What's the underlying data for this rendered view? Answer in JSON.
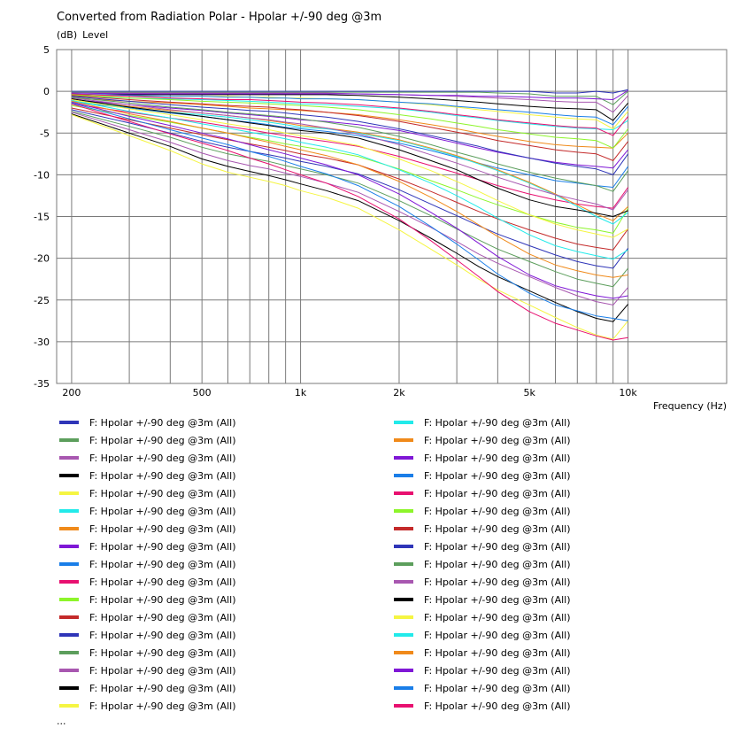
{
  "title": "Converted from Radiation Polar - Hpolar +/-90 deg @3m",
  "ylabel_unit": "(dB)",
  "ylabel_name": "Level",
  "xlabel": "Frequency  (Hz)",
  "legend_more": "...",
  "chart_data": {
    "type": "line",
    "title": "Converted from Radiation Polar - Hpolar +/-90 deg @3m",
    "xlabel": "Frequency (Hz)",
    "ylabel": "Level (dB)",
    "x_scale": "log",
    "xlim": [
      180,
      20000
    ],
    "ylim": [
      -35,
      5
    ],
    "x_ticks": [
      200,
      500,
      1000,
      2000,
      5000,
      10000
    ],
    "x_tick_labels": [
      "200",
      "500",
      "1k",
      "2k",
      "5k",
      "10k"
    ],
    "y_ticks": [
      5,
      0,
      -5,
      -10,
      -15,
      -20,
      -25,
      -30,
      -35
    ],
    "y_tick_labels": [
      "5",
      "0",
      "-5",
      "-10",
      "-15",
      "-20",
      "-25",
      "-30",
      "-35"
    ],
    "grid": true,
    "x": [
      200,
      300,
      400,
      500,
      600,
      700,
      800,
      900,
      1000,
      1200,
      1500,
      2000,
      2500,
      3000,
      3500,
      4000,
      5000,
      6000,
      7000,
      8000,
      9000,
      10000
    ],
    "series": [
      {
        "name": "F: Hpolar +/-90 deg @3m  (All)",
        "color": "#2f35b8",
        "values": [
          0,
          0,
          0,
          0,
          0,
          0,
          0,
          0,
          0,
          0,
          0,
          0,
          0,
          0,
          0,
          0,
          0,
          -0.2,
          -0.2,
          0,
          -0.2,
          0.2
        ]
      },
      {
        "name": "F: Hpolar +/-90 deg @3m  (All)",
        "color": "#5c9e5c",
        "values": [
          -0.1,
          -0.1,
          -0.1,
          -0.1,
          -0.1,
          -0.1,
          -0.1,
          -0.1,
          -0.1,
          -0.1,
          -0.1,
          -0.1,
          -0.1,
          -0.1,
          -0.1,
          -0.2,
          -0.3,
          -0.6,
          -0.6,
          -0.6,
          -1.6,
          0
        ]
      },
      {
        "name": "F: Hpolar +/-90 deg @3m  (All)",
        "color": "#a857b0",
        "values": [
          -0.2,
          -0.2,
          -0.2,
          -0.2,
          -0.2,
          -0.2,
          -0.2,
          -0.2,
          -0.2,
          -0.2,
          -0.3,
          -0.4,
          -0.5,
          -0.6,
          -0.7,
          -0.8,
          -1.0,
          -1.2,
          -1.3,
          -1.3,
          -2.5,
          -0.5
        ]
      },
      {
        "name": "F: Hpolar +/-90 deg @3m  (All)",
        "color": "#000000",
        "values": [
          -0.4,
          -0.4,
          -0.4,
          -0.4,
          -0.4,
          -0.4,
          -0.4,
          -0.4,
          -0.4,
          -0.4,
          -0.5,
          -0.7,
          -0.9,
          -1.1,
          -1.3,
          -1.5,
          -1.8,
          -2.0,
          -2.1,
          -2.2,
          -3.5,
          -1.4
        ]
      },
      {
        "name": "F: Hpolar +/-90 deg @3m  (All)",
        "color": "#f5f542",
        "values": [
          -0.5,
          -0.6,
          -0.6,
          -0.6,
          -0.6,
          -0.7,
          -0.7,
          -0.8,
          -0.8,
          -0.9,
          -1.0,
          -1.3,
          -1.6,
          -1.9,
          -2.2,
          -2.4,
          -2.8,
          -3.1,
          -3.3,
          -3.4,
          -4.5,
          -2.4
        ]
      },
      {
        "name": "F: Hpolar +/-90 deg @3m  (All)",
        "color": "#22eaea",
        "values": [
          -0.6,
          -0.8,
          -0.9,
          -1.0,
          -1.1,
          -1.2,
          -1.3,
          -1.4,
          -1.5,
          -1.6,
          -1.8,
          -2.1,
          -2.5,
          -2.9,
          -3.2,
          -3.5,
          -3.9,
          -4.2,
          -4.4,
          -4.5,
          -4.6,
          -3.5
        ]
      },
      {
        "name": "F: Hpolar +/-90 deg @3m  (All)",
        "color": "#f08a1a",
        "values": [
          -0.8,
          -1.2,
          -1.4,
          -1.6,
          -1.8,
          -2.0,
          -2.1,
          -2.2,
          -2.3,
          -2.5,
          -2.8,
          -3.4,
          -4.0,
          -4.5,
          -5.0,
          -5.4,
          -6.0,
          -6.4,
          -6.6,
          -6.7,
          -6.8,
          -5.0
        ]
      },
      {
        "name": "F: Hpolar +/-90 deg @3m  (All)",
        "color": "#7f17d6",
        "values": [
          -1.0,
          -1.6,
          -2.0,
          -2.3,
          -2.6,
          -2.8,
          -3.0,
          -3.2,
          -3.4,
          -3.6,
          -4.0,
          -4.7,
          -5.5,
          -6.2,
          -6.8,
          -7.3,
          -8.0,
          -8.5,
          -8.8,
          -9.0,
          -9.2,
          -7.0
        ]
      },
      {
        "name": "F: Hpolar +/-90 deg @3m  (All)",
        "color": "#1a7ee8",
        "values": [
          -1.3,
          -2.0,
          -2.6,
          -3.0,
          -3.4,
          -3.7,
          -4.0,
          -4.3,
          -4.5,
          -4.8,
          -5.3,
          -6.2,
          -7.1,
          -7.9,
          -8.6,
          -9.2,
          -10.0,
          -10.7,
          -11.0,
          -11.3,
          -11.5,
          -9.0
        ]
      },
      {
        "name": "F: Hpolar +/-90 deg @3m  (All)",
        "color": "#e81070",
        "values": [
          -1.5,
          -2.5,
          -3.2,
          -3.7,
          -4.2,
          -4.6,
          -5.0,
          -5.3,
          -5.6,
          -6.0,
          -6.6,
          -7.8,
          -8.9,
          -9.8,
          -10.6,
          -11.3,
          -12.3,
          -13.0,
          -13.5,
          -13.8,
          -14.0,
          -11.5
        ]
      },
      {
        "name": "F: Hpolar +/-90 deg @3m  (All)",
        "color": "#8df52a",
        "values": [
          -1.7,
          -2.9,
          -3.7,
          -4.4,
          -5.0,
          -5.5,
          -5.9,
          -6.3,
          -6.6,
          -7.1,
          -7.8,
          -9.3,
          -10.7,
          -11.8,
          -12.8,
          -13.6,
          -14.8,
          -15.7,
          -16.3,
          -16.6,
          -17.0,
          -14.0
        ]
      },
      {
        "name": "F: Hpolar +/-90 deg @3m  (All)",
        "color": "#c42a2a",
        "values": [
          -2.0,
          -3.4,
          -4.4,
          -5.2,
          -5.8,
          -6.3,
          -6.7,
          -7.1,
          -7.5,
          -8.0,
          -8.8,
          -10.5,
          -12.0,
          -13.3,
          -14.4,
          -15.3,
          -16.6,
          -17.6,
          -18.3,
          -18.7,
          -19.0,
          -16.5
        ]
      },
      {
        "name": "F: Hpolar +/-90 deg @3m  (All)",
        "color": "#2f35b8",
        "values": [
          -2.2,
          -3.8,
          -5.0,
          -6.0,
          -6.7,
          -7.2,
          -7.6,
          -8.0,
          -8.4,
          -9.0,
          -9.9,
          -11.8,
          -13.5,
          -14.9,
          -16.1,
          -17.1,
          -18.5,
          -19.6,
          -20.4,
          -20.9,
          -21.2,
          -18.8
        ]
      },
      {
        "name": "F: Hpolar +/-90 deg @3m  (All)",
        "color": "#5c9e5c",
        "values": [
          -2.4,
          -4.2,
          -5.5,
          -6.7,
          -7.5,
          -8.0,
          -8.4,
          -8.9,
          -9.3,
          -10.0,
          -11.0,
          -13.1,
          -14.9,
          -16.5,
          -17.8,
          -18.9,
          -20.4,
          -21.6,
          -22.5,
          -23.0,
          -23.4,
          -21.2
        ]
      },
      {
        "name": "F: Hpolar +/-90 deg @3m  (All)",
        "color": "#a857b0",
        "values": [
          -2.5,
          -4.6,
          -6.1,
          -7.4,
          -8.3,
          -8.9,
          -9.3,
          -9.8,
          -10.2,
          -11.0,
          -12.1,
          -14.4,
          -16.3,
          -18.0,
          -19.5,
          -20.6,
          -22.2,
          -23.5,
          -24.5,
          -25.2,
          -25.6,
          -23.5
        ]
      },
      {
        "name": "F: Hpolar +/-90 deg @3m  (All)",
        "color": "#000000",
        "values": [
          -2.7,
          -5.0,
          -6.6,
          -8.1,
          -9.0,
          -9.6,
          -10.1,
          -10.6,
          -11.1,
          -11.9,
          -13.1,
          -15.5,
          -17.6,
          -19.4,
          -21.0,
          -22.2,
          -23.9,
          -25.3,
          -26.4,
          -27.2,
          -27.6,
          -25.5
        ]
      },
      {
        "name": "F: Hpolar +/-90 deg @3m  (All)",
        "color": "#f5f542",
        "values": [
          -2.8,
          -5.3,
          -7.1,
          -8.7,
          -9.7,
          -10.3,
          -10.8,
          -11.3,
          -11.9,
          -12.7,
          -14.0,
          -16.6,
          -18.9,
          -20.8,
          -22.5,
          -23.8,
          -25.6,
          -27.1,
          -28.3,
          -29.2,
          -29.7,
          -27.5
        ]
      },
      {
        "name": "F: Hpolar +/-90 deg @3m  (All)",
        "color": "#22eaea",
        "values": [
          -1.2,
          -1.9,
          -2.5,
          -2.8,
          -3.1,
          -3.4,
          -3.7,
          -4.0,
          -4.3,
          -4.5,
          -5.0,
          -5.9,
          -6.9,
          -7.8,
          -8.7,
          -9.5,
          -11.0,
          -12.4,
          -13.8,
          -15.0,
          -15.9,
          -14.5
        ]
      },
      {
        "name": "F: Hpolar +/-90 deg @3m  (All)",
        "color": "#f08a1a",
        "values": [
          -1.0,
          -1.8,
          -2.3,
          -2.6,
          -2.9,
          -3.2,
          -3.5,
          -3.8,
          -4.1,
          -4.4,
          -4.9,
          -5.8,
          -6.8,
          -7.7,
          -8.6,
          -9.4,
          -10.9,
          -12.3,
          -13.6,
          -14.7,
          -15.5,
          -13.8
        ]
      },
      {
        "name": "F: Hpolar +/-90 deg @3m  (All)",
        "color": "#7f17d6",
        "values": [
          -0.2,
          -0.3,
          -0.3,
          -0.3,
          -0.3,
          -0.3,
          -0.3,
          -0.3,
          -0.3,
          -0.3,
          -0.3,
          -0.4,
          -0.5,
          -0.5,
          -0.6,
          -0.6,
          -0.7,
          -0.8,
          -0.8,
          -0.9,
          -1.0,
          0.1
        ]
      },
      {
        "name": "F: Hpolar +/-90 deg @3m  (All)",
        "color": "#1a7ee8",
        "values": [
          -0.3,
          -0.5,
          -0.6,
          -0.6,
          -0.7,
          -0.7,
          -0.8,
          -0.8,
          -0.9,
          -0.9,
          -1.0,
          -1.3,
          -1.5,
          -1.8,
          -2.0,
          -2.2,
          -2.5,
          -2.8,
          -3.0,
          -3.1,
          -4.0,
          -1.8
        ]
      },
      {
        "name": "F: Hpolar +/-90 deg @3m  (All)",
        "color": "#e81070",
        "values": [
          -0.3,
          -0.6,
          -0.8,
          -0.9,
          -1.0,
          -1.0,
          -1.1,
          -1.2,
          -1.3,
          -1.4,
          -1.6,
          -2.0,
          -2.4,
          -2.8,
          -3.1,
          -3.4,
          -3.8,
          -4.1,
          -4.3,
          -4.4,
          -5.3,
          -3.0
        ]
      },
      {
        "name": "F: Hpolar +/-90 deg @3m  (All)",
        "color": "#8df52a",
        "values": [
          -0.4,
          -0.8,
          -1.0,
          -1.2,
          -1.3,
          -1.4,
          -1.5,
          -1.6,
          -1.7,
          -1.9,
          -2.2,
          -2.8,
          -3.3,
          -3.8,
          -4.2,
          -4.6,
          -5.1,
          -5.5,
          -5.7,
          -5.9,
          -6.8,
          -4.5
        ]
      },
      {
        "name": "F: Hpolar +/-90 deg @3m  (All)",
        "color": "#c42a2a",
        "values": [
          -0.5,
          -1.0,
          -1.3,
          -1.5,
          -1.7,
          -1.8,
          -1.9,
          -2.1,
          -2.2,
          -2.5,
          -2.9,
          -3.6,
          -4.3,
          -4.9,
          -5.4,
          -5.9,
          -6.5,
          -7.0,
          -7.3,
          -7.5,
          -8.3,
          -6.0
        ]
      },
      {
        "name": "F: Hpolar +/-90 deg @3m  (All)",
        "color": "#2f35b8",
        "values": [
          -0.6,
          -1.2,
          -1.6,
          -1.9,
          -2.1,
          -2.3,
          -2.4,
          -2.6,
          -2.8,
          -3.1,
          -3.6,
          -4.5,
          -5.3,
          -6.0,
          -6.6,
          -7.2,
          -8.0,
          -8.6,
          -9.0,
          -9.3,
          -10.0,
          -7.5
        ]
      },
      {
        "name": "F: Hpolar +/-90 deg @3m  (All)",
        "color": "#5c9e5c",
        "values": [
          -0.7,
          -1.4,
          -1.9,
          -2.2,
          -2.5,
          -2.7,
          -2.9,
          -3.1,
          -3.3,
          -3.7,
          -4.3,
          -5.4,
          -6.4,
          -7.3,
          -8.0,
          -8.7,
          -9.7,
          -10.4,
          -10.9,
          -11.3,
          -12.0,
          -9.5
        ]
      },
      {
        "name": "F: Hpolar +/-90 deg @3m  (All)",
        "color": "#a857b0",
        "values": [
          -0.8,
          -1.6,
          -2.2,
          -2.6,
          -2.9,
          -3.2,
          -3.4,
          -3.7,
          -3.9,
          -4.4,
          -5.1,
          -6.4,
          -7.6,
          -8.6,
          -9.5,
          -10.3,
          -11.5,
          -12.4,
          -13.0,
          -13.5,
          -14.2,
          -11.8
        ]
      },
      {
        "name": "F: Hpolar +/-90 deg @3m  (All)",
        "color": "#000000",
        "values": [
          -0.9,
          -1.9,
          -2.5,
          -3.0,
          -3.4,
          -3.8,
          -4.1,
          -4.4,
          -4.7,
          -5.0,
          -5.6,
          -7.0,
          -8.3,
          -9.4,
          -10.6,
          -11.6,
          -13.0,
          -13.8,
          -14.2,
          -14.6,
          -15.0,
          -14.3
        ]
      },
      {
        "name": "F: Hpolar +/-90 deg @3m  (All)",
        "color": "#f5f542",
        "values": [
          -1.0,
          -2.1,
          -2.8,
          -3.4,
          -3.9,
          -4.3,
          -4.6,
          -5.0,
          -5.3,
          -5.8,
          -6.5,
          -8.1,
          -9.5,
          -10.8,
          -12.0,
          -13.1,
          -14.8,
          -15.9,
          -16.6,
          -17.1,
          -17.5,
          -16.5
        ]
      },
      {
        "name": "F: Hpolar +/-90 deg @3m  (All)",
        "color": "#22eaea",
        "values": [
          -1.1,
          -2.4,
          -3.2,
          -3.9,
          -4.4,
          -4.9,
          -5.3,
          -5.7,
          -6.1,
          -6.7,
          -7.6,
          -9.4,
          -11.0,
          -12.5,
          -13.9,
          -15.2,
          -17.2,
          -18.5,
          -19.2,
          -19.7,
          -20.1,
          -19.0
        ]
      },
      {
        "name": "F: Hpolar +/-90 deg @3m  (All)",
        "color": "#f08a1a",
        "values": [
          -1.2,
          -2.7,
          -3.6,
          -4.4,
          -5.0,
          -5.6,
          -6.1,
          -6.6,
          -7.0,
          -7.7,
          -8.8,
          -10.8,
          -12.7,
          -14.4,
          -16.0,
          -17.4,
          -19.5,
          -20.8,
          -21.5,
          -22.0,
          -22.3,
          -22.0
        ]
      },
      {
        "name": "F: Hpolar +/-90 deg @3m  (All)",
        "color": "#7f17d6",
        "values": [
          -1.3,
          -3.0,
          -4.1,
          -5.0,
          -5.7,
          -6.4,
          -7.0,
          -7.5,
          -8.0,
          -8.8,
          -10.0,
          -12.3,
          -14.5,
          -16.4,
          -18.2,
          -19.8,
          -22.0,
          -23.3,
          -24.0,
          -24.5,
          -24.8,
          -24.5
        ]
      },
      {
        "name": "F: Hpolar +/-90 deg @3m  (All)",
        "color": "#1a7ee8",
        "values": [
          -1.4,
          -3.3,
          -4.6,
          -5.6,
          -6.4,
          -7.2,
          -7.8,
          -8.4,
          -9.0,
          -9.9,
          -11.3,
          -13.8,
          -16.2,
          -18.3,
          -20.2,
          -21.9,
          -24.2,
          -25.6,
          -26.3,
          -26.9,
          -27.2,
          -27.5
        ]
      },
      {
        "name": "F: Hpolar +/-90 deg @3m  (All)",
        "color": "#e81070",
        "values": [
          -1.5,
          -3.6,
          -5.1,
          -6.2,
          -7.1,
          -8.0,
          -8.7,
          -9.4,
          -10.0,
          -11.0,
          -12.6,
          -15.3,
          -17.9,
          -20.2,
          -22.2,
          -24.0,
          -26.4,
          -27.8,
          -28.6,
          -29.3,
          -29.8,
          -29.5
        ]
      }
    ]
  }
}
